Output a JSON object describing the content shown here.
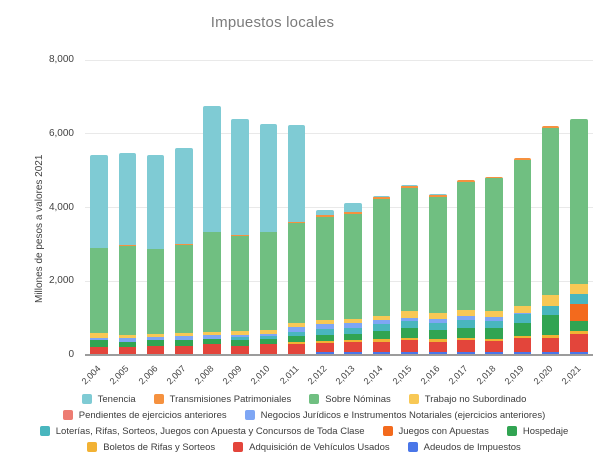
{
  "title": "Impuestos locales",
  "chart_data": {
    "type": "bar",
    "stacked": true,
    "title": "Impuestos locales",
    "xlabel": "",
    "ylabel": "Millones de pesos a valores 2021",
    "ylim": [
      0,
      8000
    ],
    "ytick_values": [
      0,
      2000,
      4000,
      6000,
      8000
    ],
    "ytick_labels": [
      "0",
      "2,000",
      "4,000",
      "6,000",
      "8,000"
    ],
    "grid": true,
    "legend_position": "bottom",
    "background": "#ffffff",
    "categories": [
      "2,004",
      "2,005",
      "2,006",
      "2,007",
      "2,008",
      "2,009",
      "2,010",
      "2,011",
      "2,012",
      "2,013",
      "2,014",
      "2,015",
      "2,016",
      "2,017",
      "2,018",
      "2,019",
      "2,020",
      "2,021"
    ],
    "series": [
      {
        "id": "adeudos",
        "name": "Adeudos de Impuestos",
        "color": "#4A76E8",
        "values": [
          0,
          0,
          0,
          0,
          0,
          0,
          0,
          0,
          70,
          70,
          70,
          70,
          70,
          70,
          70,
          70,
          70,
          70
        ]
      },
      {
        "id": "adquisicion",
        "name": "Adquisición de Vehículos Usados",
        "color": "#E3453B",
        "values": [
          230,
          225,
          250,
          250,
          290,
          250,
          290,
          300,
          245,
          270,
          290,
          335,
          290,
          330,
          315,
          380,
          380,
          500
        ]
      },
      {
        "id": "boletos",
        "name": "Boletos de Rifas y Sorteos",
        "color": "#F2B234",
        "values": [
          0,
          0,
          0,
          0,
          0,
          0,
          0,
          45,
          70,
          60,
          65,
          65,
          65,
          60,
          45,
          60,
          90,
          90
        ]
      },
      {
        "id": "hospedaje",
        "name": "Hospedaje",
        "color": "#31A452",
        "values": [
          165,
          135,
          155,
          170,
          145,
          145,
          145,
          160,
          170,
          180,
          225,
          255,
          250,
          280,
          290,
          370,
          540,
          270
        ]
      },
      {
        "id": "juegos",
        "name": "Juegos con Apuestas",
        "color": "#F36A1D",
        "values": [
          0,
          0,
          0,
          0,
          0,
          0,
          0,
          0,
          0,
          0,
          0,
          0,
          0,
          0,
          0,
          0,
          0,
          450
        ]
      },
      {
        "id": "loterias",
        "name": "Loterías, Rifas, Sorteos, Juegos con Apuesta y Concursos de Toda Clase",
        "color": "#49B6BE",
        "values": [
          0,
          0,
          0,
          0,
          0,
          90,
          70,
          110,
          160,
          160,
          180,
          195,
          200,
          210,
          205,
          225,
          255,
          270
        ]
      },
      {
        "id": "negocios",
        "name": "Negocios Jurídicos e Instrumentos Notariales (ejercicios anteriores)",
        "color": "#7EA6F4",
        "values": [
          60,
          90,
          70,
          90,
          110,
          70,
          70,
          135,
          135,
          125,
          115,
          90,
          100,
          110,
          110,
          45,
          0,
          0
        ]
      },
      {
        "id": "pendientes",
        "name": "Pendientes de ejercicios anteriores",
        "color": "#ED7C72",
        "values": [
          0,
          0,
          0,
          0,
          0,
          0,
          0,
          0,
          0,
          0,
          0,
          0,
          0,
          0,
          0,
          0,
          0,
          0
        ]
      },
      {
        "id": "trabajo",
        "name": "Trabajo no Subordinado",
        "color": "#F8C855",
        "values": [
          140,
          90,
          100,
          100,
          90,
          90,
          100,
          115,
          110,
          120,
          115,
          180,
          155,
          160,
          150,
          180,
          305,
          270
        ]
      },
      {
        "id": "nominas",
        "name": "Sobre Nóminas",
        "color": "#70BF81",
        "values": [
          2305,
          2405,
          2310,
          2380,
          2700,
          2590,
          2660,
          2710,
          2770,
          2835,
          3165,
          3345,
          3145,
          3470,
          3615,
          3950,
          4510,
          4480
        ]
      },
      {
        "id": "transmisiones",
        "name": "Transmisiones Patrimoniales",
        "color": "#F5913F",
        "values": [
          0,
          30,
          0,
          30,
          0,
          30,
          0,
          30,
          55,
          55,
          55,
          50,
          55,
          60,
          40,
          60,
          60,
          0
        ]
      },
      {
        "id": "tenencia",
        "name": "Tenencia",
        "color": "#7FCBD4",
        "values": [
          2515,
          2495,
          2530,
          2590,
          3410,
          3130,
          2930,
          2630,
          155,
          240,
          25,
          30,
          30,
          0,
          0,
          0,
          0,
          0
        ]
      }
    ],
    "legend_rows": [
      [
        "tenencia",
        "transmisiones",
        "nominas",
        "trabajo"
      ],
      [
        "pendientes",
        "negocios"
      ],
      [
        "loterias",
        "juegos",
        "hospedaje"
      ],
      [
        "boletos",
        "adquisicion",
        "adeudos"
      ]
    ]
  }
}
